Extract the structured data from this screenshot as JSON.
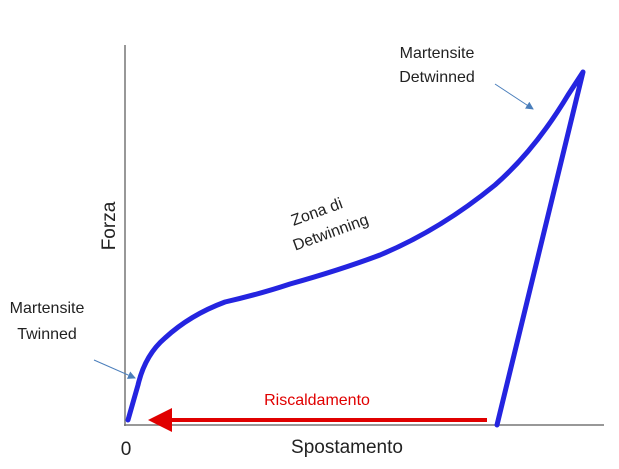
{
  "axes": {
    "y_label": "Forza",
    "x_label": "Spostamento",
    "origin": "0"
  },
  "annotations": {
    "detwinned": [
      "Martensite",
      "Detwinned"
    ],
    "twinned": [
      "Martensite",
      "Twinned"
    ],
    "zone": [
      "Zona di",
      "Detwinning"
    ],
    "heating": "Riscaldamento"
  }
}
